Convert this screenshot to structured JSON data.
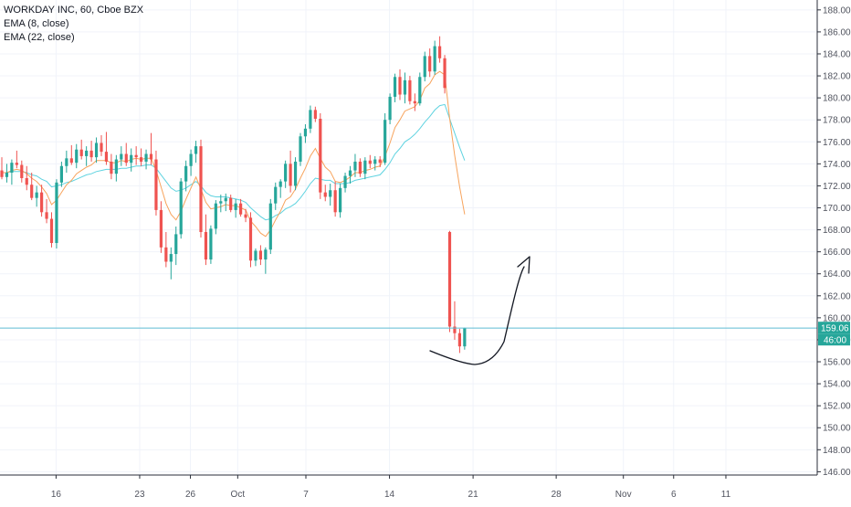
{
  "legend": {
    "symbol_line": "WORKDAY INC, 60, Cboe BZX",
    "ema8": "EMA (8, close)",
    "ema22": "EMA (22, close)"
  },
  "price_label": "159.06",
  "countdown_label": "46:00",
  "colors": {
    "up": "#26a69a",
    "down": "#ef5350",
    "ema8": "#f7a35c",
    "ema22": "#5fd3e0",
    "price_line": "#5fbcd3",
    "axis_text": "#50535e",
    "drawing": "#131722"
  },
  "chart_data": {
    "type": "candlestick",
    "title": "WORKDAY INC, 60, Cboe BZX",
    "xlabel": "",
    "ylabel": "",
    "ylim": [
      145.7,
      188.9
    ],
    "yticks": [
      146,
      148,
      150,
      152,
      154,
      156,
      158,
      160,
      162,
      164,
      166,
      168,
      170,
      172,
      174,
      176,
      178,
      180,
      182,
      184,
      186,
      188
    ],
    "x_tick_labels": [
      "16",
      "23",
      "26",
      "Oct",
      "7",
      "14",
      "21",
      "28",
      "Nov",
      "6",
      "11"
    ],
    "x_tick_index": [
      10.9,
      27.7,
      37.9,
      47.4,
      61.1,
      77.9,
      94.7,
      111.4,
      124.9,
      135.0,
      145.5
    ],
    "grid": true,
    "legend": "top-left",
    "last_price": 159.06,
    "bars": [
      [
        173.4,
        174.6,
        172.6,
        172.8
      ],
      [
        172.8,
        174.0,
        172.3,
        173.2
      ],
      [
        173.2,
        174.4,
        172.1,
        174.1
      ],
      [
        174.1,
        175.2,
        173.6,
        173.9
      ],
      [
        173.9,
        174.3,
        172.3,
        172.7
      ],
      [
        172.7,
        173.8,
        171.6,
        172.1
      ],
      [
        172.1,
        173.2,
        170.7,
        170.9
      ],
      [
        170.9,
        172.0,
        170.1,
        171.4
      ],
      [
        171.4,
        172.1,
        169.2,
        169.6
      ],
      [
        169.6,
        170.8,
        168.6,
        169.0
      ],
      [
        169.0,
        169.6,
        166.4,
        166.8
      ],
      [
        166.8,
        172.6,
        166.3,
        172.3
      ],
      [
        172.3,
        174.2,
        171.9,
        173.8
      ],
      [
        173.8,
        175.2,
        173.2,
        174.5
      ],
      [
        174.5,
        175.7,
        173.9,
        174.1
      ],
      [
        174.1,
        175.8,
        173.6,
        175.3
      ],
      [
        175.3,
        176.2,
        174.4,
        174.7
      ],
      [
        174.7,
        175.6,
        173.8,
        175.2
      ],
      [
        175.2,
        176.1,
        174.2,
        174.6
      ],
      [
        174.6,
        176.4,
        174.1,
        175.9
      ],
      [
        175.9,
        176.6,
        174.7,
        175.1
      ],
      [
        175.1,
        176.9,
        173.9,
        174.2
      ],
      [
        174.2,
        174.9,
        172.6,
        173.1
      ],
      [
        173.1,
        174.8,
        172.4,
        174.4
      ],
      [
        174.4,
        175.6,
        173.8,
        174.9
      ],
      [
        174.9,
        175.9,
        173.8,
        174.1
      ],
      [
        174.1,
        175.4,
        173.3,
        174.8
      ],
      [
        174.8,
        175.6,
        173.9,
        174.6
      ],
      [
        174.6,
        175.4,
        173.8,
        174.2
      ],
      [
        174.2,
        175.3,
        173.5,
        174.9
      ],
      [
        174.9,
        176.8,
        173.9,
        174.4
      ],
      [
        174.4,
        175.2,
        169.3,
        169.8
      ],
      [
        169.8,
        170.6,
        165.9,
        166.4
      ],
      [
        166.4,
        167.8,
        164.6,
        165.1
      ],
      [
        165.1,
        166.4,
        163.5,
        165.8
      ],
      [
        165.8,
        168.3,
        164.8,
        167.6
      ],
      [
        167.6,
        172.7,
        167.2,
        172.4
      ],
      [
        172.4,
        174.3,
        171.5,
        173.8
      ],
      [
        173.8,
        175.3,
        172.9,
        174.9
      ],
      [
        174.9,
        176.1,
        174.1,
        175.6
      ],
      [
        175.6,
        176.2,
        167.3,
        167.8
      ],
      [
        167.8,
        169.4,
        164.8,
        165.3
      ],
      [
        165.3,
        168.4,
        164.9,
        168.1
      ],
      [
        168.1,
        170.7,
        167.6,
        170.4
      ],
      [
        170.4,
        171.2,
        169.6,
        170.6
      ],
      [
        170.6,
        171.3,
        169.7,
        170.9
      ],
      [
        170.9,
        171.2,
        169.6,
        169.8
      ],
      [
        169.8,
        170.8,
        169.1,
        170.4
      ],
      [
        170.4,
        170.8,
        169.2,
        169.4
      ],
      [
        169.4,
        169.9,
        168.7,
        169.1
      ],
      [
        169.1,
        169.6,
        164.6,
        165.2
      ],
      [
        165.2,
        166.3,
        164.7,
        166.1
      ],
      [
        166.1,
        166.6,
        164.8,
        165.3
      ],
      [
        165.3,
        166.4,
        164.0,
        166.2
      ],
      [
        166.2,
        170.8,
        165.8,
        170.4
      ],
      [
        170.4,
        172.3,
        169.8,
        171.9
      ],
      [
        171.9,
        172.6,
        170.9,
        172.4
      ],
      [
        172.4,
        174.3,
        171.8,
        174.0
      ],
      [
        174.0,
        175.2,
        171.4,
        172.0
      ],
      [
        172.0,
        174.6,
        171.6,
        174.2
      ],
      [
        174.2,
        176.8,
        173.8,
        176.5
      ],
      [
        176.5,
        177.6,
        175.9,
        177.2
      ],
      [
        177.2,
        179.3,
        176.8,
        178.9
      ],
      [
        178.9,
        179.2,
        177.8,
        178.1
      ],
      [
        178.1,
        178.6,
        170.8,
        171.4
      ],
      [
        171.4,
        172.1,
        170.6,
        171.0
      ],
      [
        171.0,
        172.2,
        170.2,
        171.6
      ],
      [
        171.6,
        172.4,
        169.2,
        169.6
      ],
      [
        169.6,
        172.2,
        169.1,
        171.8
      ],
      [
        171.8,
        173.2,
        171.4,
        172.9
      ],
      [
        172.9,
        173.8,
        172.2,
        173.4
      ],
      [
        173.4,
        174.9,
        172.8,
        174.2
      ],
      [
        174.2,
        174.5,
        172.8,
        173.1
      ],
      [
        173.1,
        174.6,
        172.6,
        174.3
      ],
      [
        174.3,
        174.8,
        173.6,
        174.0
      ],
      [
        174.0,
        174.7,
        173.4,
        174.4
      ],
      [
        174.4,
        174.7,
        173.7,
        174.1
      ],
      [
        174.1,
        178.6,
        173.9,
        178.0
      ],
      [
        178.0,
        180.4,
        177.6,
        180.1
      ],
      [
        180.1,
        182.2,
        179.6,
        181.9
      ],
      [
        181.9,
        182.6,
        179.8,
        180.3
      ],
      [
        180.3,
        182.3,
        179.5,
        181.6
      ],
      [
        181.6,
        182.0,
        179.4,
        179.7
      ],
      [
        179.7,
        180.4,
        178.8,
        179.5
      ],
      [
        179.5,
        182.3,
        179.3,
        181.9
      ],
      [
        181.9,
        184.2,
        181.5,
        183.8
      ],
      [
        183.8,
        184.5,
        181.9,
        182.4
      ],
      [
        182.4,
        185.2,
        182.1,
        184.7
      ],
      [
        184.7,
        185.6,
        183.2,
        183.6
      ],
      [
        183.6,
        183.9,
        180.4,
        180.9
      ],
      [
        167.8,
        167.9,
        158.7,
        159.2
      ],
      [
        159.2,
        161.5,
        158.0,
        158.6
      ],
      [
        158.6,
        159.0,
        156.8,
        157.4
      ],
      [
        157.4,
        159.1,
        157.1,
        159.06
      ]
    ],
    "ema8": [
      173.2,
      173.2,
      173.4,
      173.5,
      173.4,
      173.1,
      172.7,
      172.4,
      171.9,
      171.3,
      170.3,
      170.7,
      171.4,
      172.1,
      172.5,
      173.1,
      173.4,
      173.7,
      173.9,
      174.3,
      174.3,
      174.3,
      174.1,
      174.1,
      174.3,
      174.2,
      174.4,
      174.5,
      174.4,
      174.5,
      174.5,
      173.4,
      171.9,
      170.4,
      169.4,
      168.9,
      169.7,
      170.8,
      171.8,
      172.8,
      171.7,
      170.5,
      169.9,
      170.0,
      170.1,
      170.3,
      170.2,
      170.2,
      170.0,
      169.8,
      168.8,
      168.3,
      167.7,
      167.4,
      168.0,
      168.9,
      169.7,
      170.7,
      171.0,
      171.7,
      172.7,
      173.6,
      174.7,
      175.4,
      174.5,
      173.7,
      173.3,
      172.4,
      172.3,
      172.5,
      172.8,
      173.2,
      173.2,
      173.4,
      173.5,
      173.7,
      173.8,
      174.7,
      175.9,
      177.3,
      178.0,
      178.8,
      179.0,
      179.2,
      179.8,
      180.9,
      181.3,
      182.1,
      182.4,
      182.1,
      178.1,
      174.8,
      171.9,
      169.4
    ],
    "ema22": [
      173.2,
      173.2,
      173.3,
      173.3,
      173.3,
      173.2,
      173.0,
      172.9,
      172.6,
      172.4,
      171.9,
      172.0,
      172.1,
      172.3,
      172.4,
      172.6,
      172.8,
      173.0,
      173.1,
      173.3,
      173.4,
      173.5,
      173.5,
      173.5,
      173.6,
      173.6,
      173.7,
      173.8,
      173.8,
      173.9,
      173.9,
      173.6,
      173.0,
      172.4,
      171.8,
      171.5,
      171.6,
      171.8,
      172.1,
      172.4,
      172.0,
      171.4,
      171.1,
      171.0,
      171.0,
      171.0,
      170.9,
      170.8,
      170.7,
      170.5,
      170.0,
      169.6,
      169.2,
      168.9,
      169.0,
      169.3,
      169.5,
      169.9,
      170.1,
      170.4,
      170.9,
      171.5,
      172.2,
      172.7,
      172.6,
      172.5,
      172.5,
      172.2,
      172.2,
      172.2,
      172.3,
      172.5,
      172.6,
      172.7,
      172.8,
      172.9,
      173.0,
      173.5,
      174.1,
      174.9,
      175.4,
      176.0,
      176.3,
      176.7,
      177.2,
      177.8,
      178.3,
      178.9,
      179.3,
      179.4,
      178.1,
      176.8,
      175.5,
      174.3
    ]
  }
}
